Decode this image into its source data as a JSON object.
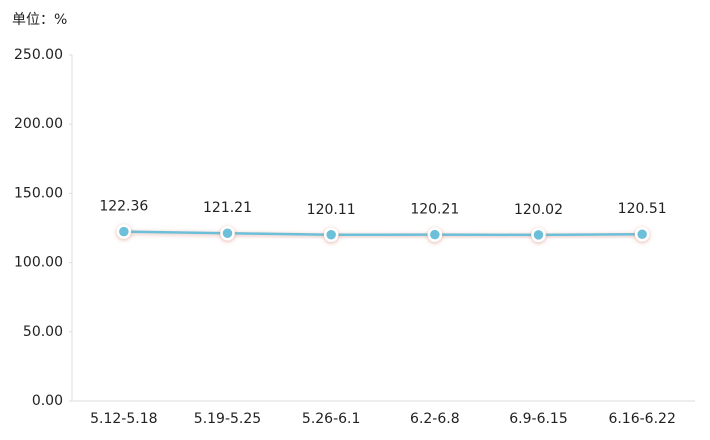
{
  "chart_data": {
    "type": "line",
    "y_label": "单位：%",
    "categories": [
      "5.12-5.18",
      "5.19-5.25",
      "5.26-6.1",
      "6.2-6.8",
      "6.9-6.15",
      "6.16-6.22"
    ],
    "values": [
      122.36,
      121.21,
      120.11,
      120.21,
      120.02,
      120.51
    ],
    "color": "#6cbfd8",
    "ylim": [
      0,
      250
    ],
    "yticks": [
      {
        "value": 0,
        "label": "0.00"
      },
      {
        "value": 50,
        "label": "50.00"
      },
      {
        "value": 100,
        "label": "100.00"
      },
      {
        "value": 150,
        "label": "150.00"
      },
      {
        "value": 200,
        "label": "200.00"
      },
      {
        "value": 250,
        "label": "250.00"
      }
    ],
    "grid": false
  }
}
